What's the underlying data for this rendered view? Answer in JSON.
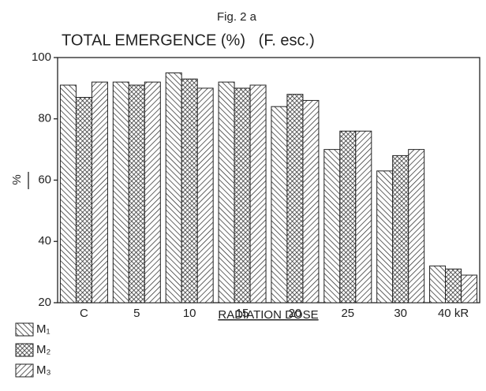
{
  "chart_data": {
    "type": "bar",
    "figure_label": "Fig. 2 a",
    "title": "TOTAL EMERGENCE (%)   (F. esc.)",
    "y_label": "%",
    "x_label": "RADIATION DOSE",
    "categories": [
      "C",
      "5",
      "10",
      "15",
      "20",
      "25",
      "30",
      "40 kR"
    ],
    "series": [
      {
        "name": "M₁",
        "color": "#222222",
        "hatch": "backslash",
        "values": [
          91,
          92,
          95,
          92,
          84,
          70,
          63,
          32
        ]
      },
      {
        "name": "M₂",
        "color": "#222222",
        "hatch": "cross",
        "values": [
          87,
          91,
          93,
          90,
          88,
          76,
          68,
          31
        ]
      },
      {
        "name": "M₃",
        "color": "#222222",
        "hatch": "slash",
        "values": [
          92,
          92,
          90,
          91,
          86,
          76,
          70,
          29
        ]
      }
    ],
    "ylim": [
      20,
      100
    ],
    "yticks": [
      20,
      40,
      60,
      80,
      100
    ],
    "legend": "bottom-left"
  }
}
